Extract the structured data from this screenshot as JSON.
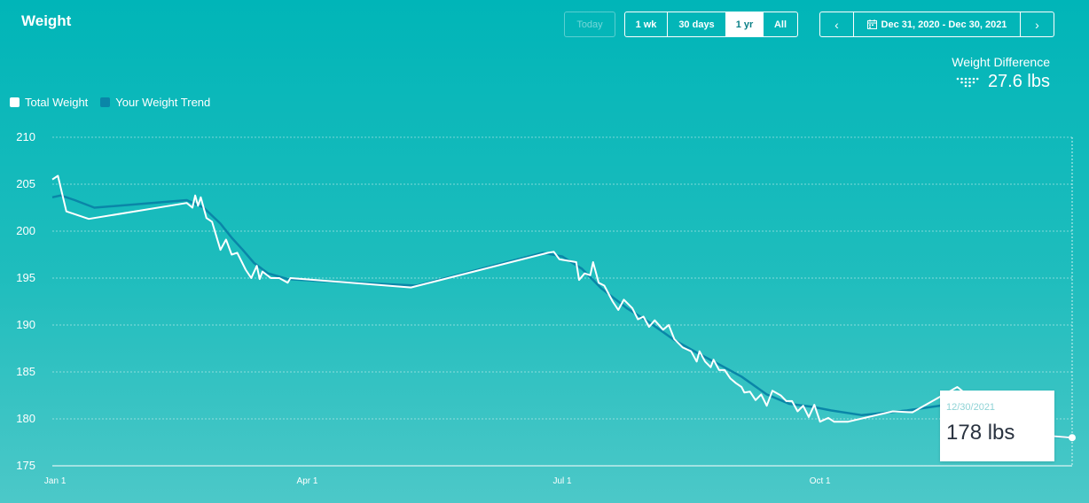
{
  "header": {
    "title": "Weight",
    "today_label": "Today",
    "ranges": [
      {
        "label": "1 wk",
        "active": false
      },
      {
        "label": "30 days",
        "active": false
      },
      {
        "label": "1 yr",
        "active": true
      },
      {
        "label": "All",
        "active": false
      }
    ],
    "date_range": "Dec 31, 2020 - Dec 30, 2021",
    "calendar_icon": "calendar-icon",
    "prev_icon": "chevron-left-icon",
    "next_icon": "chevron-right-icon"
  },
  "summary": {
    "label": "Weight Difference",
    "value": "27.6 lbs",
    "icon": "fitbit-logo-icon"
  },
  "legend": [
    {
      "label": "Total Weight",
      "color": "#ffffff"
    },
    {
      "label": "Your Weight Trend",
      "color": "#0a86a8"
    }
  ],
  "tooltip": {
    "date": "12/30/2021",
    "value": "178 lbs"
  },
  "chart_data": {
    "type": "line",
    "xlabel": "",
    "ylabel": "",
    "ylim": [
      175,
      210
    ],
    "yticks": [
      210,
      205,
      200,
      195,
      190,
      185,
      180,
      175
    ],
    "xlim": [
      "2020-12-31",
      "2021-12-30"
    ],
    "xticks": [
      {
        "date": "2021-01-01",
        "label": "Jan 1"
      },
      {
        "date": "2021-04-01",
        "label": "Apr 1"
      },
      {
        "date": "2021-07-01",
        "label": "Jul 1"
      },
      {
        "date": "2021-10-01",
        "label": "Oct 1"
      }
    ],
    "grid": true,
    "legend_position": "top-left",
    "series": [
      {
        "name": "Your Weight Trend",
        "color": "#0a86a8",
        "points": [
          [
            "2020-12-31",
            203.6
          ],
          [
            "2021-01-03",
            203.8
          ],
          [
            "2021-01-08",
            203.3
          ],
          [
            "2021-01-15",
            202.5
          ],
          [
            "2021-02-17",
            203.3
          ],
          [
            "2021-02-23",
            202.5
          ],
          [
            "2021-03-01",
            200.8
          ],
          [
            "2021-03-05",
            199.3
          ],
          [
            "2021-03-09",
            198.0
          ],
          [
            "2021-03-13",
            196.6
          ],
          [
            "2021-03-18",
            195.5
          ],
          [
            "2021-03-25",
            194.9
          ],
          [
            "2021-04-05",
            194.7
          ],
          [
            "2021-05-10",
            194.2
          ],
          [
            "2021-06-24",
            197.7
          ],
          [
            "2021-07-01",
            197.3
          ],
          [
            "2021-07-08",
            196.0
          ],
          [
            "2021-07-15",
            193.9
          ],
          [
            "2021-07-24",
            191.8
          ],
          [
            "2021-08-01",
            190.3
          ],
          [
            "2021-08-10",
            188.4
          ],
          [
            "2021-08-19",
            186.9
          ],
          [
            "2021-08-26",
            185.8
          ],
          [
            "2021-09-03",
            184.5
          ],
          [
            "2021-09-12",
            182.6
          ],
          [
            "2021-09-20",
            181.6
          ],
          [
            "2021-09-28",
            181.3
          ],
          [
            "2021-10-05",
            180.9
          ],
          [
            "2021-10-16",
            180.4
          ],
          [
            "2021-11-01",
            180.9
          ],
          [
            "2021-11-15",
            181.5
          ],
          [
            "2021-11-22",
            181.0
          ],
          [
            "2021-12-01",
            178.6
          ],
          [
            "2021-12-30",
            178.0
          ]
        ]
      },
      {
        "name": "Total Weight",
        "color": "#ffffff",
        "points": [
          [
            "2020-12-31",
            205.5
          ],
          [
            "2021-01-02",
            205.9
          ],
          [
            "2021-01-05",
            202.1
          ],
          [
            "2021-01-13",
            201.3
          ],
          [
            "2021-02-17",
            203.0
          ],
          [
            "2021-02-19",
            202.5
          ],
          [
            "2021-02-20",
            203.8
          ],
          [
            "2021-02-21",
            202.7
          ],
          [
            "2021-02-22",
            203.6
          ],
          [
            "2021-02-24",
            201.4
          ],
          [
            "2021-02-26",
            201.0
          ],
          [
            "2021-03-01",
            198.0
          ],
          [
            "2021-03-03",
            199.1
          ],
          [
            "2021-03-05",
            197.5
          ],
          [
            "2021-03-07",
            197.7
          ],
          [
            "2021-03-10",
            195.9
          ],
          [
            "2021-03-12",
            195.0
          ],
          [
            "2021-03-14",
            196.3
          ],
          [
            "2021-03-15",
            194.9
          ],
          [
            "2021-03-16",
            195.7
          ],
          [
            "2021-03-19",
            195.0
          ],
          [
            "2021-03-22",
            195.0
          ],
          [
            "2021-03-25",
            194.5
          ],
          [
            "2021-03-26",
            195.0
          ],
          [
            "2021-05-08",
            194.0
          ],
          [
            "2021-06-26",
            197.7
          ],
          [
            "2021-06-28",
            197.8
          ],
          [
            "2021-06-30",
            197.0
          ],
          [
            "2021-07-06",
            196.7
          ],
          [
            "2021-07-07",
            194.8
          ],
          [
            "2021-07-09",
            195.5
          ],
          [
            "2021-07-11",
            195.3
          ],
          [
            "2021-07-12",
            196.7
          ],
          [
            "2021-07-14",
            194.5
          ],
          [
            "2021-07-16",
            194.2
          ],
          [
            "2021-07-19",
            192.5
          ],
          [
            "2021-07-21",
            191.6
          ],
          [
            "2021-07-23",
            192.7
          ],
          [
            "2021-07-26",
            191.8
          ],
          [
            "2021-07-28",
            190.6
          ],
          [
            "2021-07-30",
            190.9
          ],
          [
            "2021-08-01",
            189.8
          ],
          [
            "2021-08-03",
            190.5
          ],
          [
            "2021-08-06",
            189.5
          ],
          [
            "2021-08-08",
            190.0
          ],
          [
            "2021-08-10",
            188.5
          ],
          [
            "2021-08-13",
            187.6
          ],
          [
            "2021-08-16",
            187.2
          ],
          [
            "2021-08-18",
            186.1
          ],
          [
            "2021-08-19",
            187.2
          ],
          [
            "2021-08-21",
            186.1
          ],
          [
            "2021-08-23",
            185.5
          ],
          [
            "2021-08-24",
            186.3
          ],
          [
            "2021-08-26",
            185.2
          ],
          [
            "2021-08-28",
            185.2
          ],
          [
            "2021-08-30",
            184.3
          ],
          [
            "2021-09-01",
            183.8
          ],
          [
            "2021-09-03",
            183.4
          ],
          [
            "2021-09-04",
            182.8
          ],
          [
            "2021-09-06",
            182.9
          ],
          [
            "2021-09-08",
            182.0
          ],
          [
            "2021-09-10",
            182.6
          ],
          [
            "2021-09-12",
            181.4
          ],
          [
            "2021-09-14",
            183.0
          ],
          [
            "2021-09-17",
            182.5
          ],
          [
            "2021-09-19",
            181.9
          ],
          [
            "2021-09-21",
            181.9
          ],
          [
            "2021-09-23",
            180.8
          ],
          [
            "2021-09-25",
            181.4
          ],
          [
            "2021-09-27",
            180.2
          ],
          [
            "2021-09-29",
            181.5
          ],
          [
            "2021-10-01",
            179.7
          ],
          [
            "2021-10-04",
            180.1
          ],
          [
            "2021-10-06",
            179.7
          ],
          [
            "2021-10-11",
            179.7
          ],
          [
            "2021-10-27",
            180.8
          ],
          [
            "2021-11-03",
            180.7
          ],
          [
            "2021-11-19",
            183.4
          ],
          [
            "2021-11-27",
            181.5
          ],
          [
            "2021-12-04",
            178.6
          ],
          [
            "2021-12-30",
            178.0
          ]
        ]
      }
    ]
  }
}
